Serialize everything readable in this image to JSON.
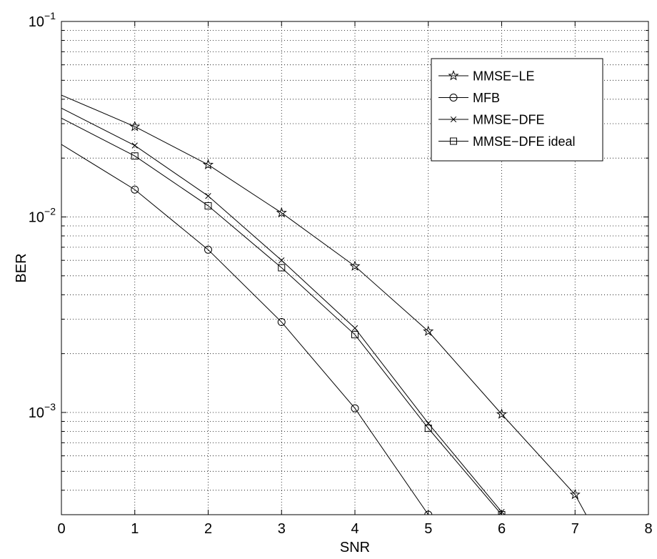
{
  "chart_data": {
    "type": "line",
    "title": "",
    "xlabel": "SNR",
    "ylabel": "BER",
    "x_scale": "linear",
    "y_scale": "log",
    "xlim": [
      0,
      8
    ],
    "ylim": [
      0.0003,
      0.1
    ],
    "x_ticks": [
      0,
      1,
      2,
      3,
      4,
      5,
      6,
      7,
      8
    ],
    "y_ticks": [
      {
        "value": 0.001,
        "base": "10",
        "exp": "−3"
      },
      {
        "value": 0.01,
        "base": "10",
        "exp": "−2"
      },
      {
        "value": 0.1,
        "base": "10",
        "exp": "−1"
      }
    ],
    "grid": true,
    "legend_position": "top-right",
    "series": [
      {
        "name": "MMSE−LE",
        "marker": "star",
        "x": [
          0,
          1,
          2,
          3,
          4,
          5,
          6,
          7,
          7.15
        ],
        "y": [
          0.042,
          0.029,
          0.0185,
          0.0105,
          0.0056,
          0.0026,
          0.00098,
          0.00038,
          0.0003
        ]
      },
      {
        "name": "MFB",
        "marker": "circle",
        "x": [
          0,
          1,
          2,
          3,
          4,
          5
        ],
        "y": [
          0.0235,
          0.0138,
          0.0068,
          0.0029,
          0.00105,
          0.0003
        ]
      },
      {
        "name": "MMSE−DFE",
        "marker": "x",
        "x": [
          0,
          1,
          2,
          3,
          4,
          5,
          6
        ],
        "y": [
          0.036,
          0.0232,
          0.0128,
          0.006,
          0.0027,
          0.00088,
          0.00031
        ]
      },
      {
        "name": "MMSE−DFE ideal",
        "marker": "square",
        "x": [
          0,
          1,
          2,
          3,
          4,
          5,
          6
        ],
        "y": [
          0.032,
          0.0205,
          0.0114,
          0.0055,
          0.0025,
          0.00083,
          0.0003
        ]
      }
    ]
  }
}
